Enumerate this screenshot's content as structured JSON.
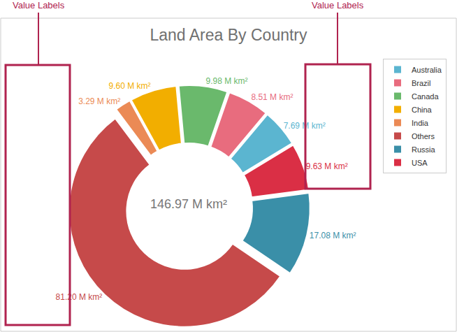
{
  "chart_data": {
    "type": "donut",
    "title": "Land Area By Country",
    "categories": [
      "Australia",
      "Brazil",
      "Canada",
      "China",
      "India",
      "Others",
      "Russia",
      "USA"
    ],
    "values": [
      7.69,
      8.51,
      9.98,
      9.6,
      3.29,
      81.2,
      17.08,
      9.63
    ],
    "value_labels": [
      "7.69 M km²",
      "8.51 M km²",
      "9.98 M km²",
      "9.60 M km²",
      "3.29 M km²",
      "81.20 M km²",
      "17.08 M km²",
      "9.63 M km²"
    ],
    "colors": [
      "#5bb5d0",
      "#e86c7e",
      "#6ab96c",
      "#f2ae00",
      "#eb8a55",
      "#c64a4a",
      "#3a8fa8",
      "#da2f45"
    ],
    "data_labels": true,
    "legend": "top-right",
    "annotations": [
      "146.97 M km²",
      "Value Labels",
      "Value Labels"
    ]
  }
}
